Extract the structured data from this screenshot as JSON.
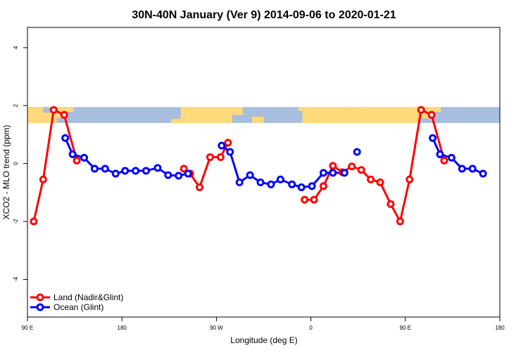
{
  "chart_data": {
    "type": "line",
    "title": "30N-40N January (Ver 9)   2014-09-06 to 2020-01-21",
    "xlabel": "Longitude (deg E)",
    "ylabel": "XCO2 - MLO trend (ppm)",
    "xlim": [
      90,
      540
    ],
    "ylim": [
      -5.3,
      4.7
    ],
    "x_ticks": [
      {
        "value": 90,
        "label": "90 E"
      },
      {
        "value": 180,
        "label": "180"
      },
      {
        "value": 270,
        "label": "90 W"
      },
      {
        "value": 360,
        "label": "0"
      },
      {
        "value": 450,
        "label": "90 E"
      },
      {
        "value": 540,
        "label": "180"
      }
    ],
    "y_ticks": [
      {
        "value": -4,
        "label": "-4"
      },
      {
        "value": -2,
        "label": "-2"
      },
      {
        "value": 0,
        "label": "0"
      },
      {
        "value": 2,
        "label": "2"
      },
      {
        "value": 4,
        "label": "4"
      }
    ],
    "map_band": {
      "y_range": [
        1.4,
        1.95
      ],
      "ocean_color": "#a8bedf",
      "land_color": "#ffd97a"
    },
    "legend": {
      "position": "bottom-left"
    },
    "series": [
      {
        "name": "Land (Nadir&Glint)",
        "color": "#ff0000",
        "segments": [
          [
            [
              96,
              -2.0
            ],
            [
              105,
              -0.55
            ],
            [
              115,
              1.85
            ],
            [
              125,
              1.68
            ],
            [
              137,
              0.1
            ]
          ],
          [
            [
              239,
              -0.18
            ],
            [
              245,
              -0.35
            ],
            [
              254,
              -0.82
            ],
            [
              264,
              0.22
            ],
            [
              274,
              0.22
            ],
            [
              281,
              0.72
            ]
          ],
          [
            [
              354,
              -1.25
            ],
            [
              363,
              -1.25
            ],
            [
              372,
              -0.78
            ],
            [
              381,
              -0.08
            ],
            [
              390,
              -0.3
            ],
            [
              399,
              -0.1
            ],
            [
              408,
              -0.22
            ],
            [
              417,
              -0.55
            ],
            [
              426,
              -0.65
            ],
            [
              436,
              -1.4
            ],
            [
              445,
              -2.0
            ],
            [
              454,
              -0.55
            ],
            [
              465,
              1.85
            ],
            [
              475,
              1.68
            ],
            [
              487,
              0.1
            ]
          ]
        ]
      },
      {
        "name": "Ocean (Glint)",
        "color": "#0000ff",
        "segments": [
          [
            [
              126,
              0.88
            ],
            [
              133,
              0.32
            ],
            [
              144,
              0.2
            ],
            [
              154,
              -0.18
            ],
            [
              164,
              -0.18
            ],
            [
              174,
              -0.35
            ],
            [
              183,
              -0.25
            ],
            [
              193,
              -0.25
            ],
            [
              203,
              -0.25
            ],
            [
              214,
              -0.15
            ],
            [
              224,
              -0.4
            ],
            [
              234,
              -0.42
            ],
            [
              243,
              -0.35
            ]
          ],
          [
            [
              275,
              0.62
            ],
            [
              283,
              0.4
            ],
            [
              292,
              -0.65
            ],
            [
              302,
              -0.4
            ],
            [
              312,
              -0.65
            ],
            [
              322,
              -0.72
            ],
            [
              331,
              -0.55
            ],
            [
              342,
              -0.72
            ],
            [
              351,
              -0.82
            ],
            [
              361,
              -0.78
            ],
            [
              372,
              -0.32
            ],
            [
              381,
              -0.32
            ],
            [
              392,
              -0.32
            ]
          ],
          [
            [
              404,
              0.4
            ]
          ],
          [
            [
              476,
              0.88
            ],
            [
              483,
              0.32
            ],
            [
              494,
              0.2
            ],
            [
              504,
              -0.18
            ],
            [
              514,
              -0.18
            ],
            [
              524,
              -0.35
            ]
          ]
        ]
      }
    ]
  }
}
